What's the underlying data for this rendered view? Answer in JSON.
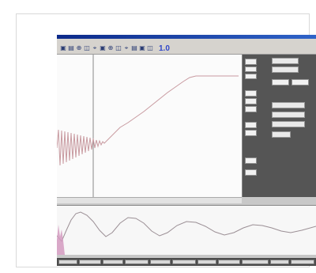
{
  "toolbar": {
    "icons": [
      "save-icon",
      "print-icon",
      "zoom-icon",
      "cursor-icon",
      "graph-icon"
    ],
    "value_display": "1.0"
  }
}
